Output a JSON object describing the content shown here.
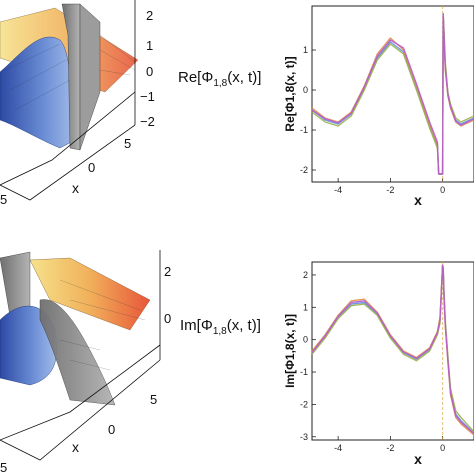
{
  "labels": {
    "top_z": "Re[Φ1,8(x, t)]",
    "bottom_z": "Im[Φ1,8(x, t)]",
    "top_y": "Re[Φ1,8(x, t)]",
    "bottom_y": "Im[Φ1,8(x, t)]",
    "x": "x",
    "phi_sub": "1,8",
    "re": "Re[Φ",
    "im": "Im[Φ",
    "tail": "(x, t)]"
  },
  "surface_ticks": {
    "top_vertical": [
      "2",
      "1",
      "0",
      "−1",
      "−2"
    ],
    "top_x": [
      "5",
      "0",
      "5"
    ],
    "top_corner": "5",
    "bottom_vertical": [
      "2",
      "0"
    ],
    "bottom_x": [
      "5",
      "0"
    ],
    "bottom_corner": "5"
  },
  "colors": {
    "warm_top": "#e8553a",
    "warm_mid": "#f1b05a",
    "warm_low": "#f6e28c",
    "cool_low": "#2d4aa5",
    "cool_mid": "#6d8fd6",
    "grey_sheet": "#8c8c8c",
    "lines": [
      "#5c8fd8",
      "#e0924a",
      "#9ab04a",
      "#b85ad0",
      "#48b7b0",
      "#d8a92c",
      "#e16f4a"
    ]
  },
  "chart_data": [
    {
      "type": "line",
      "panel": "top-right",
      "xlabel": "x",
      "ylabel": "Re[Φ1,8(x, t)]",
      "xlim": [
        -5,
        1.2
      ],
      "ylim": [
        -2.3,
        2.1
      ],
      "xticks": [
        -4,
        -2,
        0
      ],
      "yticks": [
        1,
        0,
        -1,
        -2
      ],
      "series": [
        {
          "x": [
            -5,
            -4.5,
            -4,
            -3.5,
            -3,
            -2.5,
            -2,
            -1.5,
            -1,
            -0.5,
            -0.2,
            -0.15,
            -0.08,
            0,
            0.02,
            0.05,
            0.1,
            0.2,
            0.3,
            0.5,
            0.7,
            1.2
          ],
          "values": [
            -0.5,
            -0.75,
            -0.85,
            -0.6,
            0.05,
            0.8,
            1.2,
            0.95,
            0.05,
            -0.9,
            -1.4,
            -2.1,
            -2.1,
            -2.1,
            1.9,
            1.4,
            0.6,
            -0.1,
            -0.4,
            -0.75,
            -0.85,
            -0.7
          ]
        },
        {
          "x": [
            -5,
            -4.5,
            -4,
            -3.5,
            -3,
            -2.5,
            -2,
            -1.5,
            -1,
            -0.5,
            -0.2,
            -0.15,
            -0.08,
            0,
            0.02,
            0.05,
            0.1,
            0.2,
            0.3,
            0.5,
            0.7,
            1.2
          ],
          "values": [
            -0.45,
            -0.7,
            -0.8,
            -0.55,
            0.1,
            0.9,
            1.3,
            1.0,
            0.1,
            -0.85,
            -1.35,
            -2.1,
            -2.1,
            -2.1,
            1.9,
            1.3,
            0.5,
            -0.15,
            -0.45,
            -0.8,
            -0.9,
            -0.75
          ]
        },
        {
          "x": [
            -5,
            -4.5,
            -4,
            -3.5,
            -3,
            -2.5,
            -2,
            -1.5,
            -1,
            -0.5,
            -0.2,
            -0.15,
            -0.08,
            0,
            0.02,
            0.05,
            0.1,
            0.2,
            0.3,
            0.5,
            0.7,
            1.2
          ],
          "values": [
            -0.55,
            -0.8,
            -0.9,
            -0.65,
            0.0,
            0.75,
            1.15,
            0.9,
            0.0,
            -0.95,
            -1.45,
            -2.1,
            -2.1,
            -2.1,
            1.9,
            1.5,
            0.7,
            -0.05,
            -0.35,
            -0.7,
            -0.8,
            -0.65
          ]
        },
        {
          "x": [
            -5,
            -4.5,
            -4,
            -3.5,
            -3,
            -2.5,
            -2,
            -1.5,
            -1,
            -0.5,
            -0.2,
            -0.15,
            -0.08,
            0,
            0.02,
            0.05,
            0.1,
            0.2,
            0.3,
            0.5,
            0.7,
            1.2
          ],
          "values": [
            -0.5,
            -0.72,
            -0.82,
            -0.58,
            0.08,
            0.85,
            1.25,
            1.05,
            0.15,
            -0.8,
            -1.3,
            -2.1,
            -2.1,
            -2.1,
            1.9,
            1.35,
            0.55,
            -0.12,
            -0.42,
            -0.78,
            -0.88,
            -0.72
          ]
        }
      ]
    },
    {
      "type": "line",
      "panel": "bottom-right",
      "xlabel": "x",
      "ylabel": "Im[Φ1,8(x, t)]",
      "xlim": [
        -5,
        1.2
      ],
      "ylim": [
        -3.1,
        2.4
      ],
      "xticks": [
        -4,
        -2,
        0
      ],
      "yticks": [
        2,
        1,
        0,
        -1,
        -2,
        -3
      ],
      "series": [
        {
          "x": [
            -5,
            -4.5,
            -4,
            -3.5,
            -3,
            -2.5,
            -2,
            -1.5,
            -1,
            -0.5,
            -0.2,
            -0.1,
            0,
            0.02,
            0.05,
            0.1,
            0.2,
            0.3,
            0.5,
            0.7,
            1.2
          ],
          "values": [
            -0.4,
            0.1,
            0.7,
            1.1,
            1.15,
            0.8,
            0.1,
            -0.4,
            -0.6,
            -0.3,
            0.2,
            0.6,
            2.3,
            2.2,
            1.4,
            0.5,
            -0.6,
            -1.6,
            -2.3,
            -2.5,
            -2.9
          ]
        },
        {
          "x": [
            -5,
            -4.5,
            -4,
            -3.5,
            -3,
            -2.5,
            -2,
            -1.5,
            -1,
            -0.5,
            -0.2,
            -0.1,
            0,
            0.02,
            0.05,
            0.1,
            0.2,
            0.3,
            0.5,
            0.7,
            1.2
          ],
          "values": [
            -0.35,
            0.15,
            0.75,
            1.2,
            1.25,
            0.85,
            0.15,
            -0.35,
            -0.55,
            -0.25,
            0.25,
            0.7,
            2.3,
            2.2,
            1.3,
            0.4,
            -0.7,
            -1.7,
            -2.4,
            -2.6,
            -2.95
          ]
        },
        {
          "x": [
            -5,
            -4.5,
            -4,
            -3.5,
            -3,
            -2.5,
            -2,
            -1.5,
            -1,
            -0.5,
            -0.2,
            -0.1,
            0,
            0.02,
            0.05,
            0.1,
            0.2,
            0.3,
            0.5,
            0.7,
            1.2
          ],
          "values": [
            -0.45,
            0.05,
            0.65,
            1.05,
            1.1,
            0.75,
            0.05,
            -0.45,
            -0.65,
            -0.35,
            0.15,
            0.5,
            2.3,
            2.2,
            1.5,
            0.6,
            -0.5,
            -1.5,
            -2.2,
            -2.4,
            -2.85
          ]
        },
        {
          "x": [
            -5,
            -4.5,
            -4,
            -3.5,
            -3,
            -2.5,
            -2,
            -1.5,
            -1,
            -0.5,
            -0.2,
            -0.1,
            0,
            0.02,
            0.05,
            0.1,
            0.2,
            0.3,
            0.5,
            0.7,
            1.2
          ],
          "values": [
            -0.4,
            0.12,
            0.72,
            1.15,
            1.2,
            0.82,
            0.12,
            -0.38,
            -0.58,
            -0.28,
            0.22,
            0.62,
            2.3,
            2.2,
            1.35,
            0.45,
            -0.65,
            -1.65,
            -2.35,
            -2.55,
            -2.9
          ]
        }
      ]
    }
  ]
}
